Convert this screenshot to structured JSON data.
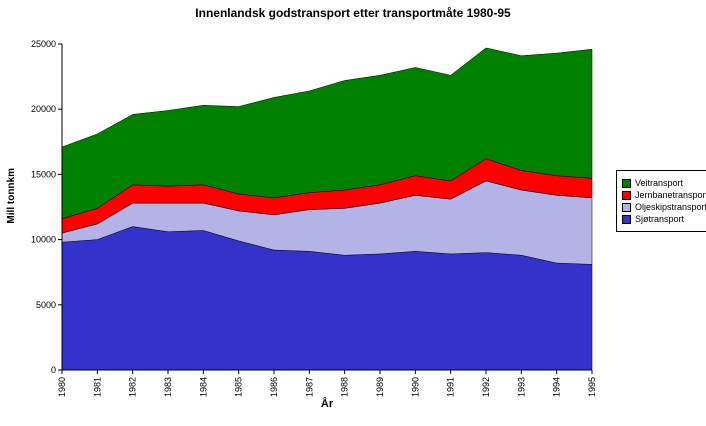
{
  "chart_data": {
    "type": "area",
    "stacked": true,
    "title": "Innenlandsk godstransport etter transportmåte 1980-95",
    "xlabel": "År",
    "ylabel": "Mill tonnkm",
    "ylim": [
      0,
      25000
    ],
    "yticks": [
      0,
      5000,
      10000,
      15000,
      20000,
      25000
    ],
    "grid": false,
    "legend_position": "right",
    "x": [
      1980,
      1981,
      1982,
      1983,
      1984,
      1985,
      1986,
      1987,
      1988,
      1989,
      1990,
      1991,
      1992,
      1993,
      1994,
      1995
    ],
    "series": [
      {
        "name": "Sjøtransport",
        "color": "#3333CC",
        "values": [
          9800,
          10000,
          11000,
          10600,
          10700,
          9900,
          9200,
          9100,
          8800,
          8900,
          9100,
          8900,
          9000,
          8800,
          8200,
          8100
        ]
      },
      {
        "name": "Oljeskipstransport",
        "color": "#B3B3E6",
        "values": [
          700,
          1200,
          1800,
          2200,
          2100,
          2300,
          2700,
          3200,
          3600,
          3900,
          4300,
          4200,
          5500,
          5000,
          5200,
          5100
        ]
      },
      {
        "name": "Jernbanetransport",
        "color": "#FF0000",
        "values": [
          1100,
          1200,
          1400,
          1300,
          1400,
          1300,
          1300,
          1300,
          1400,
          1400,
          1500,
          1400,
          1700,
          1500,
          1500,
          1500
        ]
      },
      {
        "name": "Veitransport",
        "color": "#008000",
        "values": [
          5500,
          5700,
          5400,
          5800,
          6100,
          6700,
          7700,
          7800,
          8400,
          8400,
          8300,
          8100,
          8500,
          8800,
          9400,
          9900
        ]
      }
    ],
    "legend_order": [
      "Veitransport",
      "Jernbanetransport",
      "Oljeskipstransport",
      "Sjøtransport"
    ]
  }
}
